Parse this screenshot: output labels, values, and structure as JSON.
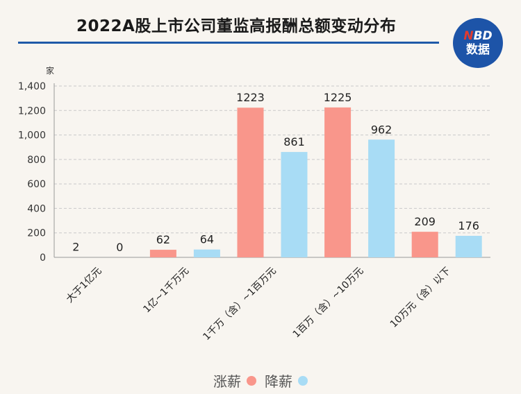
{
  "header": {
    "title": "2022A股上市公司董监高报酬总额变动分布",
    "logo_top": "NBD",
    "logo_bottom": "数据"
  },
  "colors": {
    "increase": "#f9968b",
    "decrease": "#a8dcf5",
    "accent": "#1f5aa8",
    "logo_bg": "#1d54a8"
  },
  "chart_data": {
    "type": "bar",
    "ylabel": "家",
    "ylim": [
      0,
      1400
    ],
    "yticks": [
      0,
      200,
      400,
      600,
      800,
      1000,
      1200,
      1400
    ],
    "ytick_labels": [
      "0",
      "200",
      "400",
      "600",
      "800",
      "1,000",
      "1,200",
      "1,400"
    ],
    "grid": true,
    "legend_position": "bottom-center",
    "categories": [
      "大于1亿元",
      "1亿~1千万元",
      "1千万（含）~1百万元",
      "1百万（含）~10万元",
      "10万元（含）以下"
    ],
    "series": [
      {
        "name": "涨薪",
        "color": "#f9968b",
        "values": [
          2,
          62,
          1223,
          1225,
          209
        ]
      },
      {
        "name": "降薪",
        "color": "#a8dcf5",
        "values": [
          0,
          64,
          861,
          962,
          176
        ]
      }
    ]
  }
}
